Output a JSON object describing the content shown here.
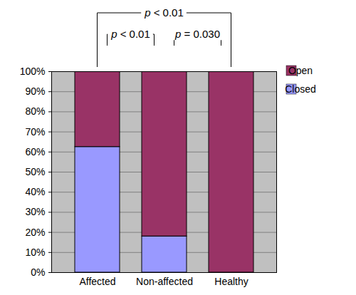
{
  "chart_data": {
    "type": "bar",
    "stacked": true,
    "categories": [
      "Affected",
      "Non-affected",
      "Healthy"
    ],
    "series": [
      {
        "name": "Open",
        "color": "#993366",
        "values": [
          37.5,
          82,
          100
        ]
      },
      {
        "name": "Closed",
        "color": "#9999ff",
        "values": [
          62.5,
          18,
          0
        ]
      }
    ],
    "ylim": [
      0,
      100
    ],
    "yticks": [
      {
        "value": 0,
        "label": "0%"
      },
      {
        "value": 10,
        "label": "10%"
      },
      {
        "value": 20,
        "label": "20%"
      },
      {
        "value": 30,
        "label": "30%"
      },
      {
        "value": 40,
        "label": "40%"
      },
      {
        "value": 50,
        "label": "50%"
      },
      {
        "value": 60,
        "label": "60%"
      },
      {
        "value": 70,
        "label": "70%"
      },
      {
        "value": 80,
        "label": "80%"
      },
      {
        "value": 90,
        "label": "90%"
      },
      {
        "value": 100,
        "label": "100%"
      }
    ],
    "grid": true,
    "legend": "right",
    "annotations": [
      {
        "text": "p < 0.01",
        "from": "Affected",
        "to": "Healthy"
      },
      {
        "text": "p < 0.01",
        "from": "Affected",
        "to": "Non-affected"
      },
      {
        "text": "p = 0.030",
        "from": "Non-affected",
        "to": "Healthy"
      }
    ]
  }
}
